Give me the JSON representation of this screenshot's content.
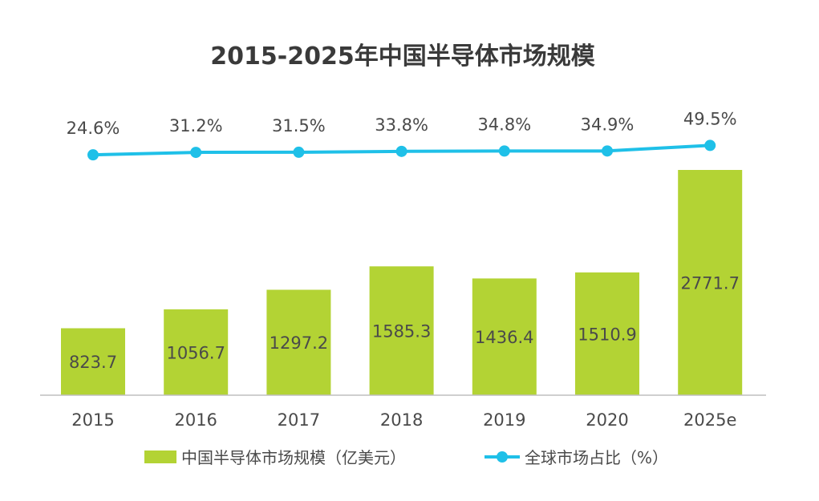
{
  "chart_data": {
    "type": "bar",
    "title": "2015-2025年中国半导体市场规模",
    "categories": [
      "2015",
      "2016",
      "2017",
      "2018",
      "2019",
      "2020",
      "2025e"
    ],
    "series": [
      {
        "name": "中国半导体市场规模（亿美元）",
        "type": "bar",
        "values": [
          823.7,
          1056.7,
          1297.2,
          1585.3,
          1436.4,
          1510.9,
          2771.7
        ],
        "labels": [
          "823.7",
          "1056.7",
          "1297.2",
          "1585.3",
          "1436.4",
          "1510.9",
          "2771.7"
        ],
        "color": "#b3d334"
      },
      {
        "name": "全球市场占比（%）",
        "type": "line",
        "values": [
          24.6,
          31.2,
          31.5,
          33.8,
          34.8,
          34.9,
          49.5
        ],
        "labels": [
          "24.6%",
          "31.2%",
          "31.5%",
          "33.8%",
          "34.8%",
          "34.9%",
          "49.5%"
        ],
        "color": "#1fc0e8"
      }
    ],
    "xlabel": "",
    "ylabel": "",
    "grid": false,
    "legend": "bottom"
  }
}
